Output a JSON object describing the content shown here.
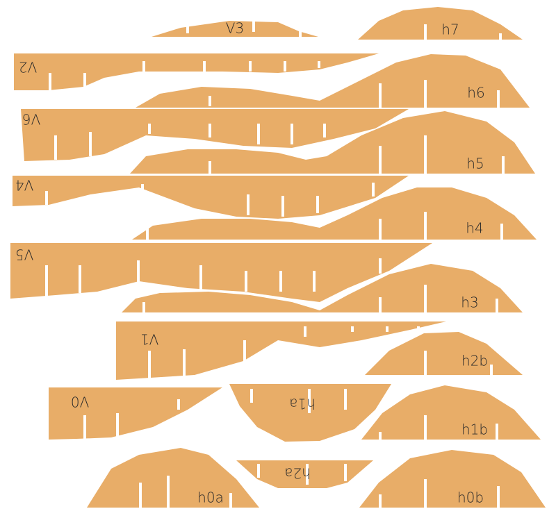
{
  "pieces": [
    {
      "label": "V3"
    },
    {
      "label": "h7"
    },
    {
      "label": "V2"
    },
    {
      "label": "h6"
    },
    {
      "label": "V6"
    },
    {
      "label": "h5"
    },
    {
      "label": "V4"
    },
    {
      "label": "h4"
    },
    {
      "label": "V5"
    },
    {
      "label": "h3"
    },
    {
      "label": "V1"
    },
    {
      "label": "h2b"
    },
    {
      "label": "V0"
    },
    {
      "label": "h1a"
    },
    {
      "label": "h1b"
    },
    {
      "label": "h0a"
    },
    {
      "label": "h2a"
    },
    {
      "label": "h0b"
    }
  ]
}
